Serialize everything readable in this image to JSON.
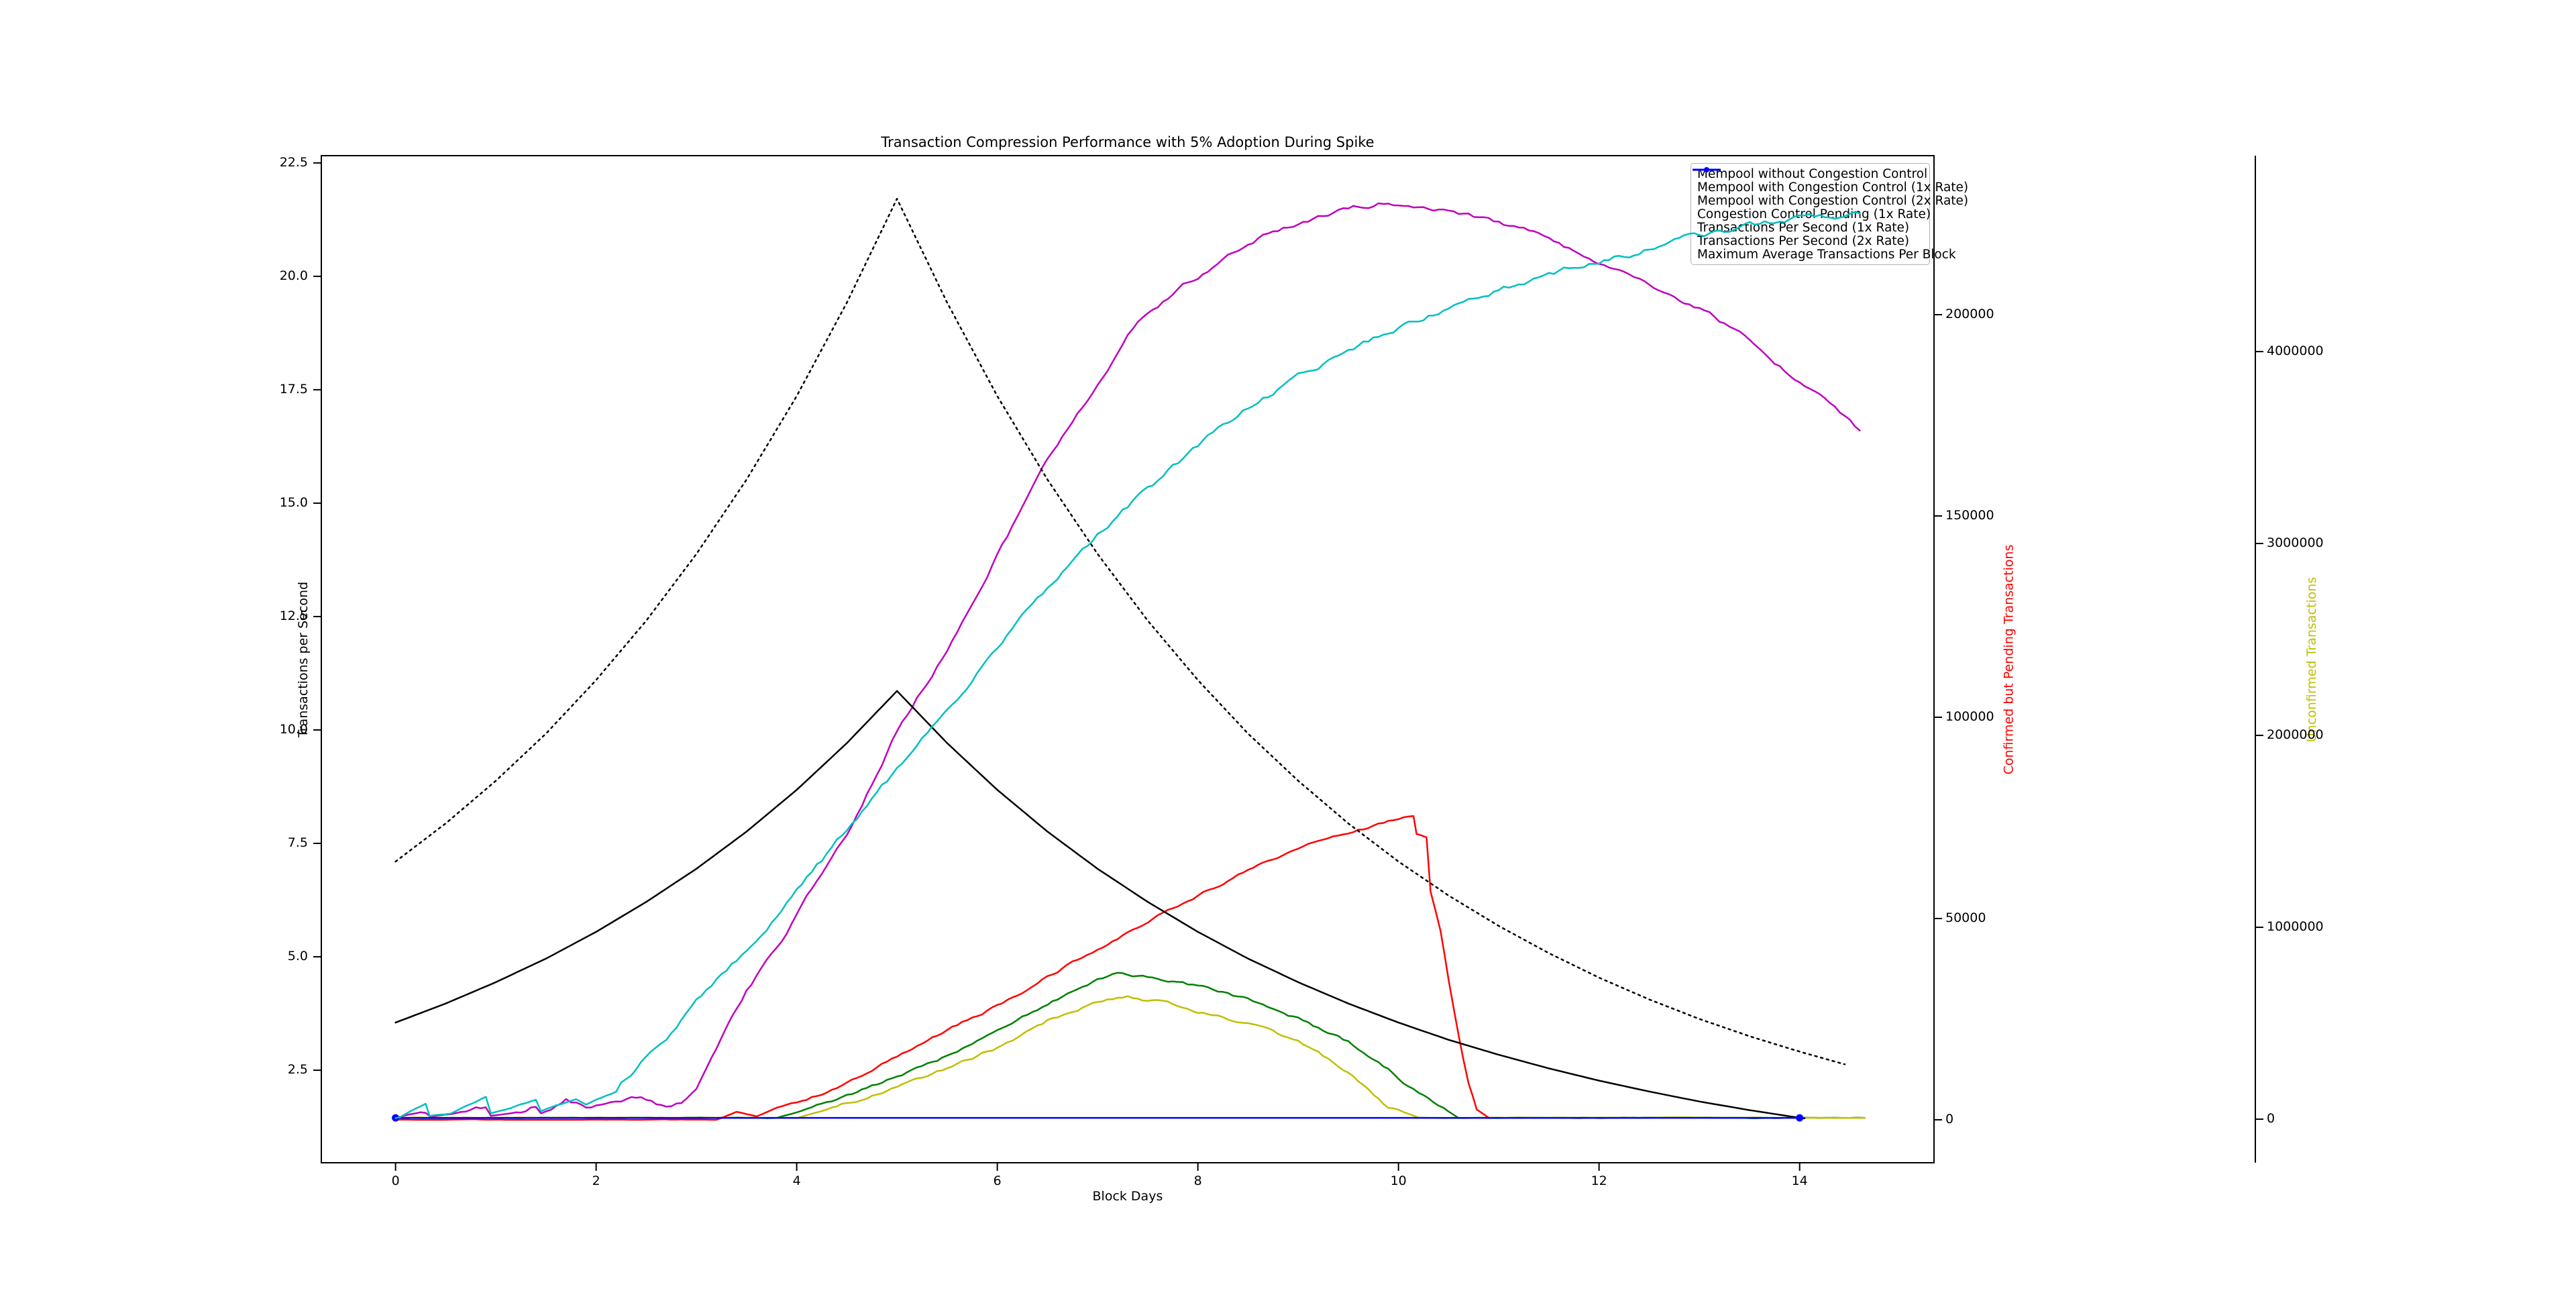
{
  "title": "Transaction Compression Performance with 5% Adoption During Spike",
  "axes": {
    "x": {
      "label": "Block Days",
      "ticks": [
        0,
        2,
        4,
        6,
        8,
        10,
        12,
        14
      ],
      "range": [
        -0.74,
        15.34
      ]
    },
    "left": {
      "label": "Transactions per Second",
      "ticks": [
        2.5,
        5.0,
        7.5,
        10.0,
        12.5,
        15.0,
        17.5,
        20.0,
        22.5
      ],
      "range": [
        0.46,
        22.66
      ],
      "label_color": "#000000"
    },
    "right1": {
      "label": "Confirmed but Pending Transactions",
      "ticks": [
        0,
        50000,
        100000,
        150000,
        200000
      ],
      "range": [
        -10670,
        239500
      ],
      "label_color": "#ff0000"
    },
    "right2": {
      "label": "Unconfirmed Transactions",
      "ticks": [
        0,
        1000000,
        2000000,
        3000000,
        4000000
      ],
      "range": [
        -227000,
        5021000
      ],
      "label_color": "#bfbf00"
    }
  },
  "legend": {
    "entries": [
      {
        "label": "Mempool without Congestion Control",
        "color": "#008000",
        "style": "solid",
        "marker": false
      },
      {
        "label": "Mempool with Congestion Control (1x Rate)",
        "color": "#bfbf00",
        "style": "solid",
        "marker": false
      },
      {
        "label": "Mempool with Congestion Control (2x Rate)",
        "color": "#bf00bf",
        "style": "solid",
        "marker": false
      },
      {
        "label": "Congestion Control Pending (1x Rate)",
        "color": "#ff0000",
        "style": "solid",
        "marker": false
      },
      {
        "label": "Transactions Per Second (1x Rate)",
        "color": "#000000",
        "style": "solid",
        "marker": false
      },
      {
        "label": "Transactions Per Second (2x Rate)",
        "color": "#000000",
        "style": "dotted",
        "marker": false
      },
      {
        "label": "Maximum Average Transactions Per Block",
        "color": "#0000ff",
        "style": "solid",
        "marker": true
      }
    ]
  },
  "chart_data": {
    "type": "line",
    "xlabel": "Block Days",
    "grid": false,
    "legend_position": "upper right",
    "series": [
      {
        "name": "Mempool without Congestion Control",
        "axis": "left",
        "color": "#008000",
        "style": "solid",
        "in_legend": true,
        "noise": 0.07,
        "min": 1.42,
        "damp_below": 1.6,
        "points": [
          [
            0,
            1.45
          ],
          [
            3.8,
            1.45
          ],
          [
            4.2,
            1.7
          ],
          [
            4.6,
            2.0
          ],
          [
            5,
            2.35
          ],
          [
            5.5,
            2.8
          ],
          [
            6,
            3.35
          ],
          [
            6.5,
            3.95
          ],
          [
            7,
            4.5
          ],
          [
            7.2,
            4.65
          ],
          [
            7.5,
            4.58
          ],
          [
            8,
            4.35
          ],
          [
            8.5,
            4.05
          ],
          [
            9,
            3.65
          ],
          [
            9.5,
            3.1
          ],
          [
            9.9,
            2.5
          ],
          [
            10.2,
            2.0
          ],
          [
            10.6,
            1.45
          ],
          [
            14.65,
            1.45
          ]
        ]
      },
      {
        "name": "Mempool with Congestion Control (1x Rate)",
        "axis": "left",
        "color": "#bfbf00",
        "style": "solid",
        "in_legend": true,
        "noise": 0.07,
        "min": 1.42,
        "damp_below": 1.6,
        "points": [
          [
            0,
            1.45
          ],
          [
            4.0,
            1.45
          ],
          [
            4.4,
            1.7
          ],
          [
            5,
            2.1
          ],
          [
            5.5,
            2.55
          ],
          [
            6,
            3.0
          ],
          [
            6.5,
            3.6
          ],
          [
            7,
            4.0
          ],
          [
            7.3,
            4.1
          ],
          [
            7.6,
            4.02
          ],
          [
            8,
            3.82
          ],
          [
            8.5,
            3.5
          ],
          [
            9,
            3.1
          ],
          [
            9.5,
            2.45
          ],
          [
            9.9,
            1.7
          ],
          [
            10.2,
            1.45
          ],
          [
            14.65,
            1.45
          ]
        ]
      },
      {
        "name": "Mempool with Congestion Control (2x Rate)",
        "axis": "left",
        "color": "#bf00bf",
        "style": "solid",
        "in_legend": true,
        "noise": 0.1,
        "min": 1.42,
        "damp_below": 1.6,
        "points": [
          [
            0,
            1.45
          ],
          [
            0.3,
            1.6
          ],
          [
            0.35,
            1.48
          ],
          [
            0.6,
            1.55
          ],
          [
            0.9,
            1.7
          ],
          [
            0.95,
            1.5
          ],
          [
            1.2,
            1.58
          ],
          [
            1.4,
            1.72
          ],
          [
            1.45,
            1.55
          ],
          [
            1.7,
            1.85
          ],
          [
            1.9,
            1.68
          ],
          [
            2.1,
            1.85
          ],
          [
            2.35,
            1.95
          ],
          [
            2.55,
            1.82
          ],
          [
            2.7,
            1.65
          ],
          [
            2.85,
            1.78
          ],
          [
            3.0,
            2.1
          ],
          [
            3.2,
            2.9
          ],
          [
            3.5,
            4.2
          ],
          [
            3.75,
            5.0
          ],
          [
            4.0,
            5.9
          ],
          [
            4.3,
            7.0
          ],
          [
            4.55,
            7.9
          ],
          [
            5.0,
            10.0
          ],
          [
            5.5,
            11.8
          ],
          [
            6.0,
            13.9
          ],
          [
            6.5,
            15.9
          ],
          [
            7.0,
            17.6
          ],
          [
            7.4,
            19.0
          ],
          [
            7.8,
            19.7
          ],
          [
            8.2,
            20.3
          ],
          [
            8.6,
            20.8
          ],
          [
            9.0,
            21.2
          ],
          [
            9.5,
            21.5
          ],
          [
            9.9,
            21.65
          ],
          [
            10.3,
            21.55
          ],
          [
            10.9,
            21.2
          ],
          [
            11.5,
            20.85
          ],
          [
            12.0,
            20.3
          ],
          [
            12.5,
            19.8
          ],
          [
            13.0,
            19.3
          ],
          [
            13.5,
            18.6
          ],
          [
            14.0,
            17.7
          ],
          [
            14.3,
            17.2
          ],
          [
            14.6,
            16.6
          ]
        ]
      },
      {
        "name": "Congestion Control Pending (1x Rate)",
        "axis": "right1",
        "color": "#ff0000",
        "style": "solid",
        "in_legend": true,
        "noise": 700,
        "min": 0,
        "damp_below": 4000,
        "points": [
          [
            0,
            0
          ],
          [
            3.2,
            0
          ],
          [
            3.4,
            2000
          ],
          [
            3.6,
            800
          ],
          [
            3.8,
            3000
          ],
          [
            4.0,
            4500
          ],
          [
            4.3,
            7000
          ],
          [
            4.7,
            11500
          ],
          [
            5,
            15500
          ],
          [
            5.5,
            22000
          ],
          [
            6,
            28500
          ],
          [
            6.5,
            35500
          ],
          [
            7,
            42500
          ],
          [
            7.5,
            49500
          ],
          [
            8,
            56000
          ],
          [
            8.5,
            62000
          ],
          [
            9,
            67000
          ],
          [
            9.5,
            71500
          ],
          [
            10,
            74500
          ],
          [
            10.15,
            75500
          ],
          [
            10.18,
            71000
          ],
          [
            10.28,
            70500
          ],
          [
            10.32,
            57000
          ],
          [
            10.42,
            47000
          ],
          [
            10.5,
            35000
          ],
          [
            10.6,
            21000
          ],
          [
            10.7,
            9000
          ],
          [
            10.78,
            2500
          ],
          [
            10.9,
            500
          ]
        ]
      },
      {
        "name": "Transactions Per Second (1x Rate)",
        "axis": "left",
        "color": "#000000",
        "style": "solid",
        "in_legend": true,
        "noise": 0,
        "min": 0,
        "damp_below": 0,
        "points": [
          [
            0,
            3.55
          ],
          [
            0.5,
            3.97
          ],
          [
            1,
            4.44
          ],
          [
            1.5,
            4.96
          ],
          [
            2,
            5.55
          ],
          [
            2.5,
            6.21
          ],
          [
            3,
            6.94
          ],
          [
            3.5,
            7.76
          ],
          [
            4,
            8.68
          ],
          [
            4.5,
            9.71
          ],
          [
            5,
            10.86
          ],
          [
            5.5,
            9.71
          ],
          [
            6,
            8.68
          ],
          [
            6.5,
            7.76
          ],
          [
            7,
            6.94
          ],
          [
            7.5,
            6.21
          ],
          [
            8,
            5.55
          ],
          [
            8.5,
            4.96
          ],
          [
            9,
            4.44
          ],
          [
            9.5,
            3.97
          ],
          [
            10,
            3.55
          ],
          [
            10.5,
            3.17
          ],
          [
            11,
            2.84
          ],
          [
            11.5,
            2.54
          ],
          [
            12,
            2.27
          ],
          [
            12.5,
            2.03
          ],
          [
            13,
            1.81
          ],
          [
            13.5,
            1.62
          ],
          [
            14,
            1.45
          ],
          [
            14.05,
            1.44
          ]
        ]
      },
      {
        "name": "Transactions Per Second (2x Rate)",
        "axis": "left",
        "color": "#000000",
        "style": "dotted",
        "in_legend": true,
        "noise": 0,
        "min": 0,
        "damp_below": 0,
        "points": [
          [
            0,
            7.1
          ],
          [
            0.5,
            7.94
          ],
          [
            1,
            8.88
          ],
          [
            1.5,
            9.92
          ],
          [
            2,
            11.1
          ],
          [
            2.5,
            12.41
          ],
          [
            3,
            13.88
          ],
          [
            3.5,
            15.52
          ],
          [
            4,
            17.36
          ],
          [
            4.5,
            19.42
          ],
          [
            5,
            21.71
          ],
          [
            5.5,
            19.42
          ],
          [
            6,
            17.36
          ],
          [
            6.5,
            15.52
          ],
          [
            7,
            13.88
          ],
          [
            7.5,
            12.41
          ],
          [
            8,
            11.1
          ],
          [
            8.5,
            9.92
          ],
          [
            9,
            8.88
          ],
          [
            9.5,
            7.94
          ],
          [
            10,
            7.1
          ],
          [
            10.5,
            6.35
          ],
          [
            11,
            5.68
          ],
          [
            11.5,
            5.08
          ],
          [
            12,
            4.54
          ],
          [
            12.5,
            4.06
          ],
          [
            13,
            3.63
          ],
          [
            13.5,
            3.25
          ],
          [
            14,
            2.91
          ],
          [
            14.45,
            2.63
          ]
        ]
      },
      {
        "name": "Maximum Average Transactions Per Block",
        "axis": "left",
        "color": "#0000ff",
        "style": "solid",
        "in_legend": true,
        "noise": 0,
        "min": 0,
        "damp_below": 0,
        "endpoint_markers": true,
        "points": [
          [
            0,
            1.45
          ],
          [
            14,
            1.45
          ]
        ]
      },
      {
        "name": "Unconfirmed Transactions",
        "axis": "right2",
        "color": "#00bfbf",
        "style": "solid",
        "in_legend": false,
        "noise": 30000,
        "min": 0,
        "damp_below": 150000,
        "overlay": true,
        "points": [
          [
            0,
            5000
          ],
          [
            0.05,
            10000
          ],
          [
            0.3,
            80000
          ],
          [
            0.34,
            15000
          ],
          [
            0.55,
            30000
          ],
          [
            0.9,
            115000
          ],
          [
            0.95,
            30000
          ],
          [
            1.1,
            50000
          ],
          [
            1.4,
            100000
          ],
          [
            1.45,
            40000
          ],
          [
            1.6,
            70000
          ],
          [
            1.8,
            100000
          ],
          [
            1.9,
            75000
          ],
          [
            2.0,
            100000
          ],
          [
            2.2,
            140000
          ],
          [
            2.5,
            320000
          ],
          [
            3.0,
            600000
          ],
          [
            3.5,
            880000
          ],
          [
            4.0,
            1180000
          ],
          [
            4.5,
            1500000
          ],
          [
            5.0,
            1820000
          ],
          [
            5.5,
            2140000
          ],
          [
            6.0,
            2460000
          ],
          [
            6.5,
            2760000
          ],
          [
            7.0,
            3040000
          ],
          [
            7.5,
            3280000
          ],
          [
            8.0,
            3500000
          ],
          [
            8.5,
            3700000
          ],
          [
            9.0,
            3870000
          ],
          [
            9.5,
            4000000
          ],
          [
            10.0,
            4120000
          ],
          [
            10.5,
            4220000
          ],
          [
            11.0,
            4320000
          ],
          [
            11.5,
            4400000
          ],
          [
            12.0,
            4470000
          ],
          [
            12.5,
            4540000
          ],
          [
            13.0,
            4600000
          ],
          [
            13.5,
            4650000
          ],
          [
            14.0,
            4690000
          ],
          [
            14.6,
            4720000
          ]
        ]
      }
    ]
  }
}
